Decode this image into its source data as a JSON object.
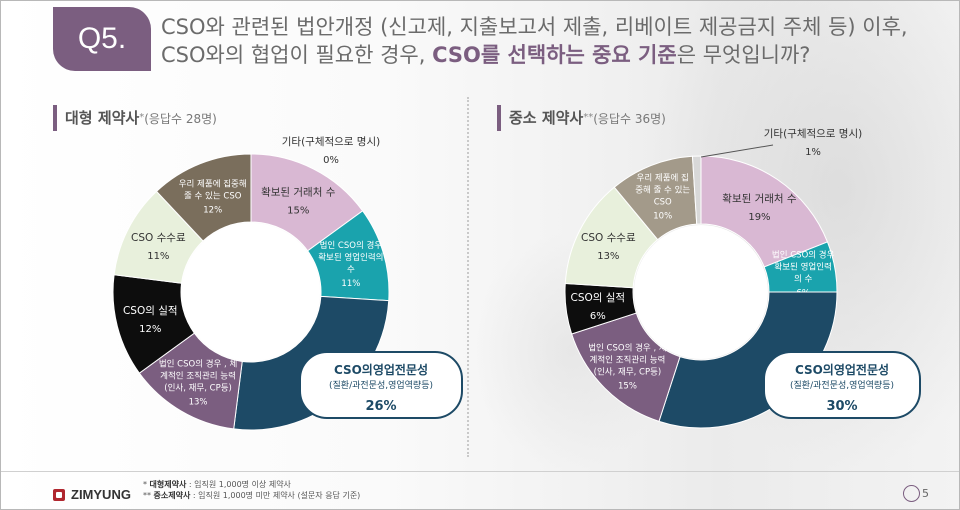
{
  "question": {
    "badge": "Q5.",
    "line1": "CSO와 관련된 법안개정 (신고제, 지출보고서 제출, 리베이트 제공금지 주체 등) 이후,",
    "line2_pre": "CSO와의 협업이 필요한 경우, ",
    "line2_bold": "CSO를 선택하는 중요 기준",
    "line2_post": "은 무엇입니까?"
  },
  "panels": [
    {
      "title": "대형 제약사",
      "mark": "*",
      "sub": "(응답수 28명)"
    },
    {
      "title": "중소 제약사",
      "mark": "**",
      "sub": "(응답수 36명)"
    }
  ],
  "colors": {
    "accent": "#7b5e80",
    "dark_blue": "#1d4a66"
  },
  "chart_data": [
    {
      "type": "pie",
      "categories": [
        "확보된 거래처 수",
        "법인 CSO의 경우 확보된 영업인력의 수",
        "CSO의영업전문성",
        "법인 CSO의 경우 , 체계적인 조직관리 능력 (인사, 재무, CP등)",
        "CSO의 실적",
        "CSO 수수료",
        "우리 제품에 집중해 줄 수 있는 CSO",
        "기타(구체적으로 명시)"
      ],
      "values": [
        15,
        11,
        26,
        13,
        12,
        11,
        12,
        0
      ],
      "value_labels": [
        "15%",
        "11%",
        "26%",
        "13%",
        "12%",
        "11%",
        "12%",
        "0%"
      ],
      "label_lines": [
        [
          "확보된 거래처 수"
        ],
        [
          "법인 CSO의 경우",
          "확보된 영업인력의",
          "수"
        ],
        [],
        [
          "법인 CSO의 경우 , 체",
          "계적인 조직관리 능력",
          "(인사, 재무, CP등)"
        ],
        [
          "CSO의 실적"
        ],
        [
          "CSO 수수료"
        ],
        [
          "우리 제품에 집중해",
          "줄 수 있는 CSO"
        ],
        [
          "기타(구체적으로 명시)"
        ]
      ],
      "callout": {
        "title": "CSO의영업전문성",
        "sub": "(질환/과전문성,영업역량등)",
        "value": "26%"
      },
      "slice_colors": [
        "#d9b8d3",
        "#1aa3ad",
        "#1d4a66",
        "#7b5e80",
        "#0d0d0d",
        "#e8f0dc",
        "#7a6e5c",
        "#7a6e5c"
      ]
    },
    {
      "type": "pie",
      "categories": [
        "확보된 거래처 수",
        "법인 CSO의 경우 확보된 영업인력의 수",
        "CSO의영업전문성",
        "법인 CSO의 경우 , 체계적인 조직관리 능력 (인사, 재무, CP등)",
        "CSO의 실적",
        "CSO 수수료",
        "우리 제품에 집중해 줄 수 있는 CSO",
        "기타(구체적으로 명시)"
      ],
      "values": [
        19,
        6,
        30,
        15,
        6,
        13,
        10,
        1
      ],
      "value_labels": [
        "19%",
        "6%",
        "30%",
        "15%",
        "6%",
        "13%",
        "10%",
        "1%"
      ],
      "label_lines": [
        [
          "확보된 거래처 수"
        ],
        [
          "법인 CSO의 경우",
          "확보된 영업인력",
          "의 수"
        ],
        [],
        [
          "법인 CSO의 경우 , 체",
          "계적인 조직관리 능력",
          "(인사, 재무, CP등)"
        ],
        [
          "CSO의 실적"
        ],
        [
          "CSO 수수료"
        ],
        [
          "우리 제품에 집",
          "중해 줄 수 있는",
          "CSO"
        ],
        [
          "기타(구체적으로 명시)"
        ]
      ],
      "callout": {
        "title": "CSO의영업전문성",
        "sub": "(질환/과전문성,영업역량등)",
        "value": "30%"
      },
      "slice_colors": [
        "#d9b8d3",
        "#1aa3ad",
        "#1d4a66",
        "#7b5e80",
        "#0d0d0d",
        "#e8f0dc",
        "#a39a8a",
        "#d8d8d8"
      ]
    }
  ],
  "footer": {
    "logo": "ZIMYUNG",
    "note1_mark": "*",
    "note1_label": "대형제약사",
    "note1_text": " : 임직원 1,000명 이상 제약사",
    "note2_mark": "**",
    "note2_label": "중소제약사",
    "note2_text": " : 임직원 1,000명 미만 제약사 (설문자 응답 기준)",
    "page": "5"
  }
}
